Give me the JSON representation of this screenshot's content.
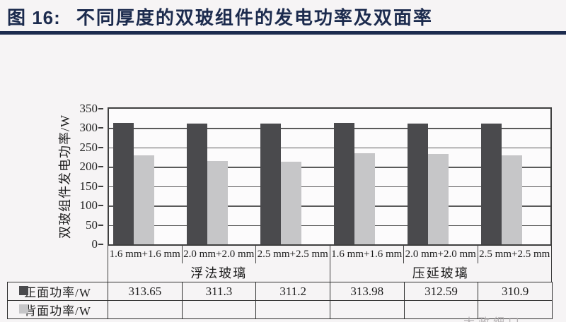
{
  "header": {
    "figure_label": "图 16:",
    "title": "不同厚度的双玻组件的发电功率及双面率"
  },
  "colors": {
    "accent_navy": "#1c2b4e",
    "front_bar": "#4a4a4d",
    "back_bar": "#c6c6c8",
    "axis_border": "#3f3f3f"
  },
  "chart_data": {
    "type": "bar",
    "title": "",
    "xlabel": "",
    "ylabel": "双玻组件发电功率/W",
    "ylim": [
      0,
      350
    ],
    "ytick_step": 50,
    "grid": true,
    "legend_position": "table-left",
    "categories": [
      "1.6 mm+1.6 mm",
      "2.0 mm+2.0 mm",
      "2.5 mm+2.5 mm",
      "1.6 mm+1.6 mm",
      "2.0 mm+2.0 mm",
      "2.5 mm+2.5 mm"
    ],
    "category_groups": [
      {
        "label": "浮法玻璃",
        "span": 3
      },
      {
        "label": "压延玻璃",
        "span": 3
      }
    ],
    "series": [
      {
        "name": "正面功率/W",
        "color": "#4a4a4d",
        "values": [
          313.65,
          311.3,
          311.2,
          313.98,
          312.59,
          310.9
        ]
      },
      {
        "name": "背面功率/W",
        "color": "#c6c6c8",
        "values": [
          230,
          215,
          214,
          235,
          233,
          230
        ]
      }
    ]
  },
  "table": {
    "rows": [
      {
        "label": "正面功率/W",
        "swatch": "#4a4a4d",
        "values": [
          "313.65",
          "311.3",
          "311.2",
          "313.98",
          "312.59",
          "310.9"
        ]
      },
      {
        "label": "背面功率/W",
        "swatch": "#c6c6c8",
        "values": [
          "",
          "",
          "",
          "",
          "",
          ""
        ]
      }
    ]
  },
  "watermark": "大政细口"
}
